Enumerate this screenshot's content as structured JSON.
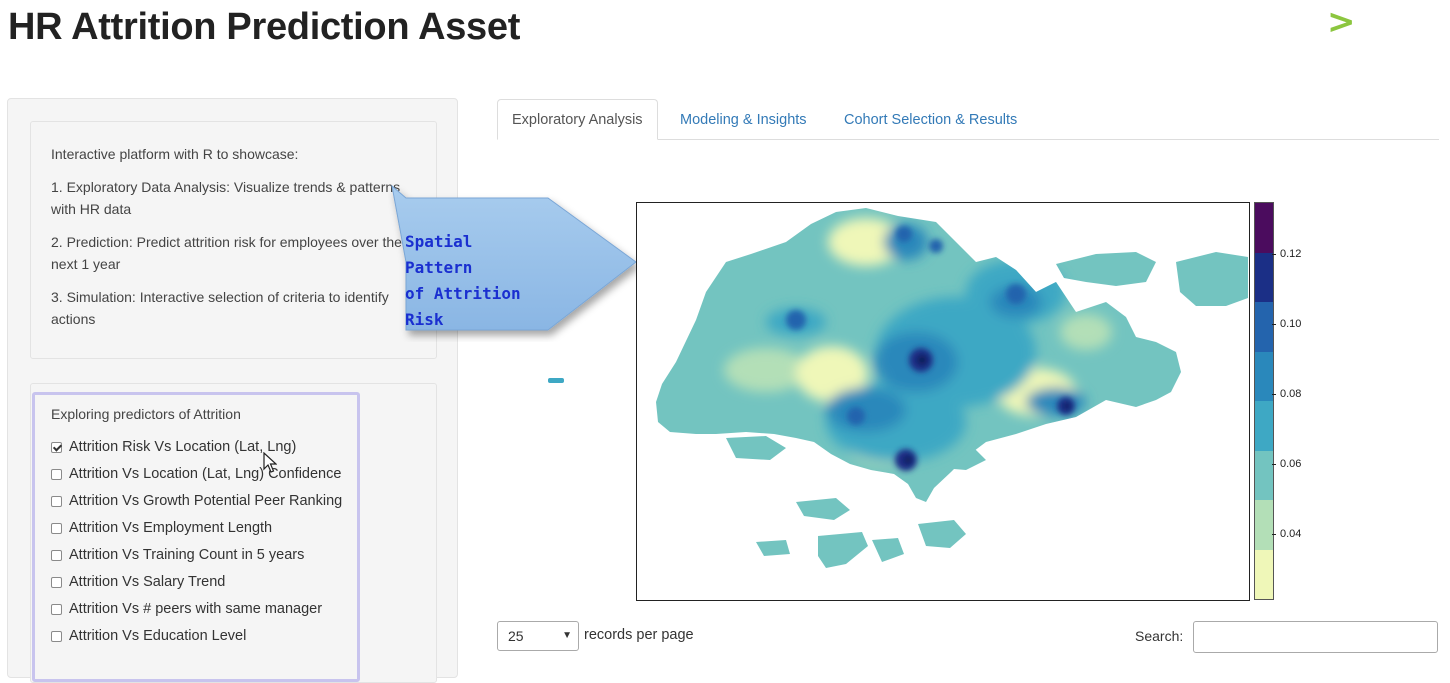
{
  "app": {
    "title": "HR Attrition Prediction Asset",
    "logo_glyph": ">",
    "accent_color": "#8cc63f"
  },
  "intro": {
    "heading": "Interactive platform with R to showcase:",
    "items": [
      "1. Exploratory Data Analysis: Visualize trends & patterns with HR data",
      "2. Prediction: Predict attrition risk for employees over the next 1 year",
      "3. Simulation: Interactive selection of criteria to identify actions"
    ]
  },
  "predictors": {
    "heading": "Exploring predictors of Attrition",
    "options": [
      {
        "label": "Attrition Risk Vs Location (Lat, Lng)",
        "checked": true
      },
      {
        "label": "Attrition Vs Location (Lat, Lng) Confidence",
        "checked": false
      },
      {
        "label": "Attrition Vs Growth Potential Peer Ranking",
        "checked": false
      },
      {
        "label": "Attrition Vs Employment Length",
        "checked": false
      },
      {
        "label": "Attrition Vs Training Count in 5 years",
        "checked": false
      },
      {
        "label": "Attrition Vs Salary Trend",
        "checked": false
      },
      {
        "label": "Attrition Vs # peers with same manager",
        "checked": false
      },
      {
        "label": "Attrition Vs Education Level",
        "checked": false
      }
    ]
  },
  "tabs": [
    {
      "label": "Exploratory Analysis",
      "active": true
    },
    {
      "label": "Modeling & Insights",
      "active": false
    },
    {
      "label": "Cohort Selection & Results",
      "active": false
    }
  ],
  "callout": {
    "lines": [
      "Spatial Pattern",
      "of Attrition",
      "Risk"
    ]
  },
  "map_legend": {
    "ticks": [
      "0.12",
      "0.10",
      "0.08",
      "0.06",
      "0.04"
    ],
    "colors": [
      "#4b0c5e",
      "#1b2f86",
      "#2464ad",
      "#2a88bb",
      "#3ea8c4",
      "#73c4c0",
      "#b3dfb7",
      "#eff7b8"
    ]
  },
  "table_controls": {
    "length_value": "25",
    "length_label": "records per page",
    "search_label": "Search:",
    "search_value": ""
  }
}
